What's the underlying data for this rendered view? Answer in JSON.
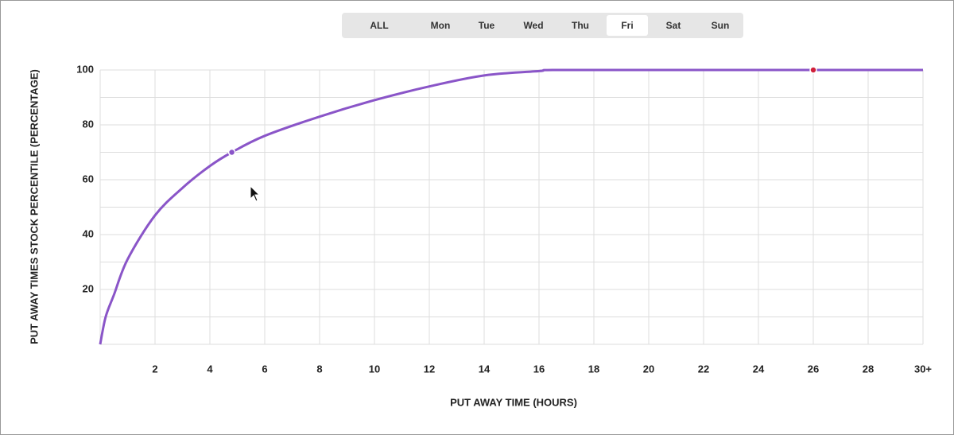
{
  "tabs": {
    "items": [
      "ALL",
      "Mon",
      "Tue",
      "Wed",
      "Thu",
      "Fri",
      "Sat",
      "Sun"
    ],
    "selected": 5
  },
  "chart_data": {
    "type": "line",
    "x_label": "PUT AWAY TIME (HOURS)",
    "y_label": "PUT AWAY TIMES STOCK PERCENTILE (PERCENTAGE)",
    "x": [
      0,
      0.2,
      0.5,
      1,
      2,
      3,
      4,
      4.8,
      6,
      8,
      10,
      12,
      14,
      16,
      16.5,
      20,
      26,
      30
    ],
    "values": [
      0,
      10,
      18,
      31,
      47,
      57,
      65,
      70,
      76,
      83,
      89,
      94,
      98,
      99.6,
      100,
      100,
      100,
      100
    ],
    "color": "#8a55c8",
    "highlights": [
      {
        "x": 4.8,
        "y": 70,
        "color": "#8a55c8"
      },
      {
        "x": 26,
        "y": 100,
        "color": "#d0203a"
      }
    ],
    "xlim": [
      0,
      30
    ],
    "ylim": [
      0,
      100
    ],
    "xticks": [
      2,
      4,
      6,
      8,
      10,
      12,
      14,
      16,
      18,
      20,
      22,
      24,
      26,
      28,
      {
        "value": 30,
        "label": "30+"
      }
    ],
    "yticks": [
      20,
      40,
      60,
      80,
      100
    ],
    "y_gridlines": [
      10,
      30,
      50,
      70,
      90
    ],
    "grid": true
  }
}
